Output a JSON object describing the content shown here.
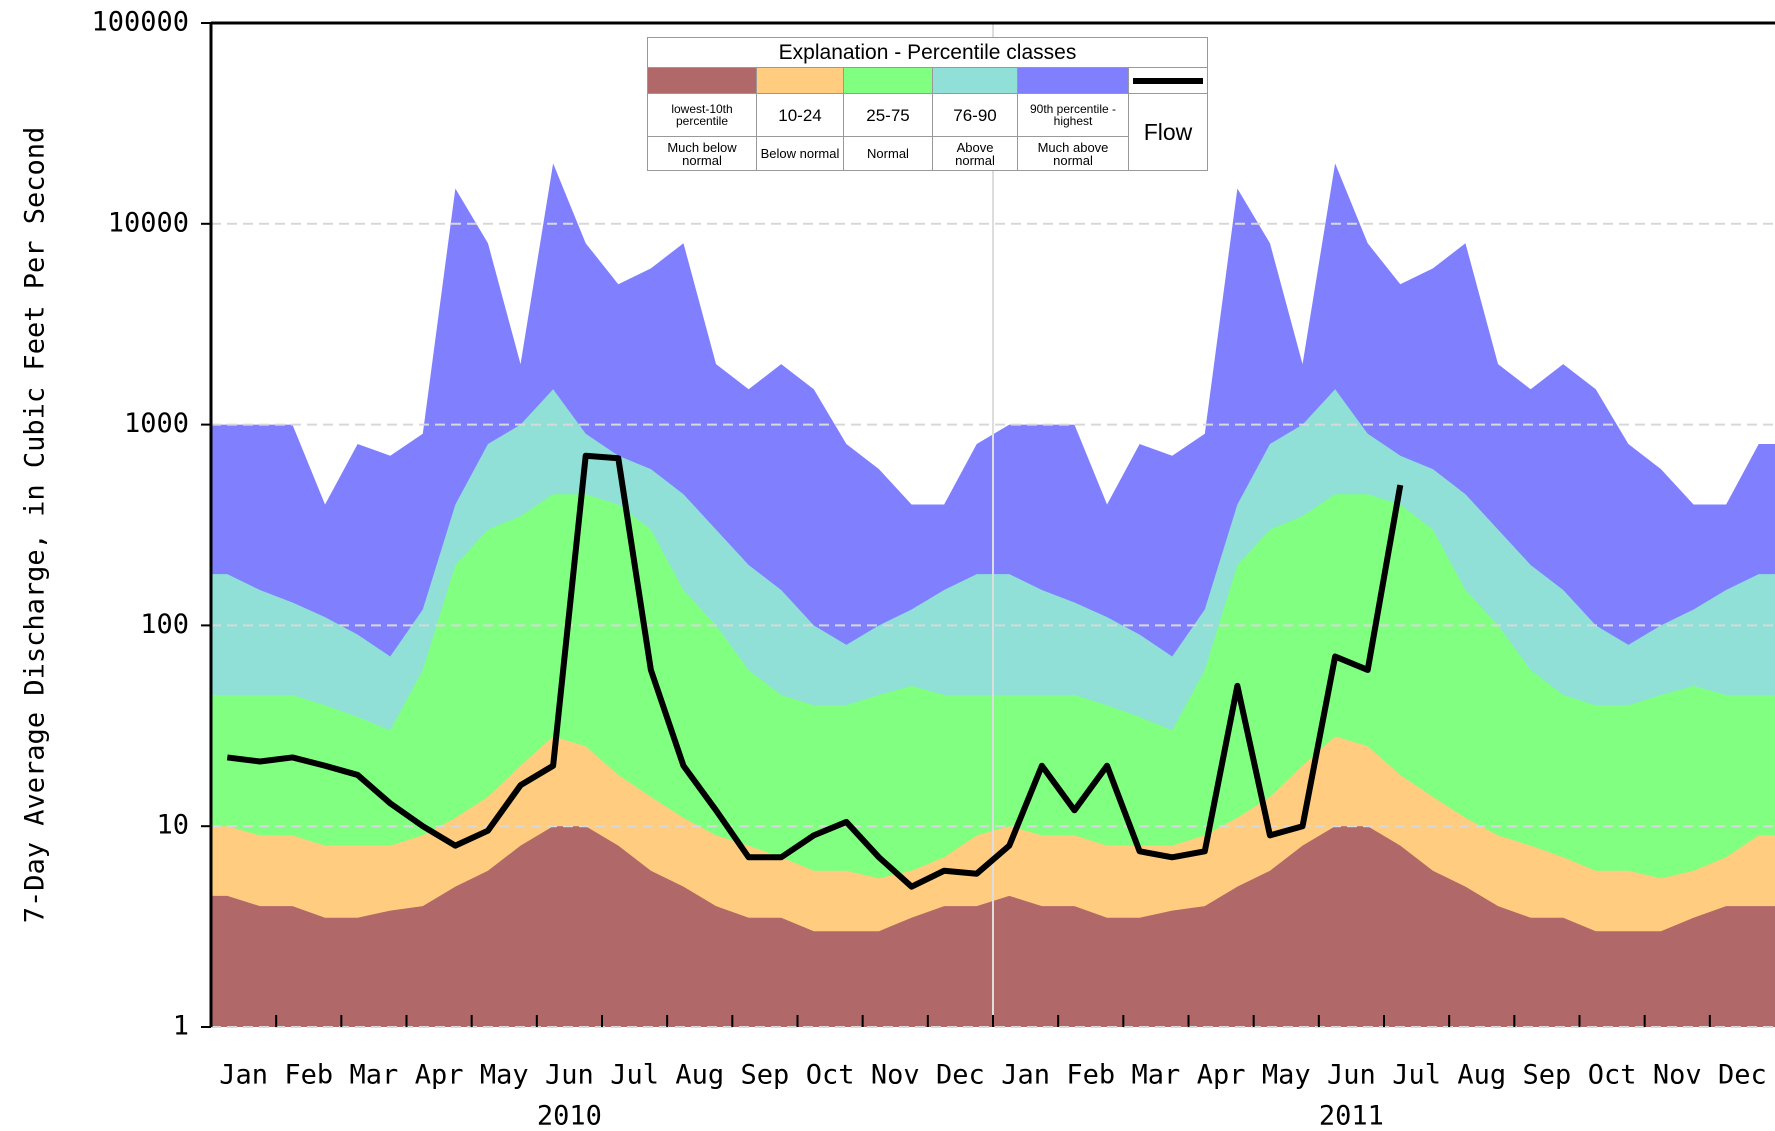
{
  "chart_data": {
    "type": "area",
    "y_label": "7-Day Average Discharge, in Cubic Feet Per Second",
    "legend_title": "Explanation - Percentile classes",
    "legend_descriptions": [
      "Much below normal",
      "Below normal",
      "Normal",
      "Above normal",
      "Much above normal"
    ],
    "categories": [
      "Jan",
      null,
      "Feb",
      null,
      "Mar",
      null,
      "Apr",
      null,
      "May",
      null,
      "Jun",
      null,
      "Jul",
      null,
      "Aug",
      null,
      "Sep",
      null,
      "Oct",
      null,
      "Nov",
      null,
      "Dec",
      null,
      "Jan",
      null,
      "Feb",
      null,
      "Mar",
      null,
      "Apr",
      null,
      "May",
      null,
      "Jun",
      null,
      "Jul",
      null,
      "Aug",
      null,
      "Sep",
      null,
      "Oct",
      null,
      "Nov",
      null,
      "Dec",
      null
    ],
    "x_group_labels": [
      "2010",
      "2011"
    ],
    "log_scale": true,
    "grid": true,
    "ylim": [
      1,
      100000
    ],
    "yticks": [
      1,
      10,
      100,
      1000,
      10000,
      100000
    ],
    "series": [
      {
        "name": "lowest-10th percentile",
        "color": "#b06868",
        "values": [
          4.5,
          4,
          4,
          3.5,
          3.5,
          3.8,
          4,
          5,
          6,
          8,
          10,
          10,
          8,
          6,
          5,
          4,
          3.5,
          3.5,
          3,
          3,
          3,
          3.5,
          4,
          4,
          4.5,
          4,
          4,
          3.5,
          3.5,
          3.8,
          4,
          5,
          6,
          8,
          10,
          10,
          8,
          6,
          5,
          4,
          3.5,
          3.5,
          3,
          3,
          3,
          3.5,
          4,
          4
        ]
      },
      {
        "name": "10-24",
        "color": "#ffcc80",
        "values": [
          10,
          9,
          9,
          8,
          8,
          8,
          9,
          11,
          14,
          20,
          28,
          25,
          18,
          14,
          11,
          9,
          8,
          7,
          6,
          6,
          5.5,
          6,
          7,
          9,
          10,
          9,
          9,
          8,
          8,
          8,
          9,
          11,
          14,
          20,
          28,
          25,
          18,
          14,
          11,
          9,
          8,
          7,
          6,
          6,
          5.5,
          6,
          7,
          9
        ]
      },
      {
        "name": "25-75",
        "color": "#80ff80",
        "values": [
          45,
          45,
          45,
          40,
          35,
          30,
          60,
          200,
          300,
          350,
          450,
          450,
          400,
          300,
          150,
          100,
          60,
          45,
          40,
          40,
          45,
          50,
          45,
          45,
          45,
          45,
          45,
          40,
          35,
          30,
          60,
          200,
          300,
          350,
          450,
          450,
          400,
          300,
          150,
          100,
          60,
          45,
          40,
          40,
          45,
          50,
          45,
          45
        ]
      },
      {
        "name": "76-90",
        "color": "#90e0d8",
        "values": [
          180,
          150,
          130,
          110,
          90,
          70,
          120,
          400,
          800,
          1000,
          1500,
          900,
          700,
          600,
          450,
          300,
          200,
          150,
          100,
          80,
          100,
          120,
          150,
          180,
          180,
          150,
          130,
          110,
          90,
          70,
          120,
          400,
          800,
          1000,
          1500,
          900,
          700,
          600,
          450,
          300,
          200,
          150,
          100,
          80,
          100,
          120,
          150,
          180
        ]
      },
      {
        "name": "90th percentile -highest",
        "color": "#8080ff",
        "values": [
          1000,
          1000,
          1000,
          400,
          800,
          700,
          900,
          15000,
          8000,
          2000,
          20000,
          8000,
          5000,
          6000,
          8000,
          2000,
          1500,
          2000,
          1500,
          800,
          600,
          400,
          400,
          800,
          1000,
          1000,
          1000,
          400,
          800,
          700,
          900,
          15000,
          8000,
          2000,
          20000,
          8000,
          5000,
          6000,
          8000,
          2000,
          1500,
          2000,
          1500,
          800,
          600,
          400,
          400,
          800
        ]
      },
      {
        "name": "Flow",
        "color": "#000000",
        "kind": "line",
        "values": [
          22,
          21,
          22,
          20,
          18,
          13,
          10,
          8,
          9.5,
          16,
          20,
          700,
          680,
          60,
          20,
          12,
          7,
          7,
          9,
          10.5,
          7,
          5,
          6,
          5.8,
          8,
          20,
          12,
          20,
          7.5,
          7,
          7.5,
          50,
          9,
          10,
          70,
          60,
          500,
          null,
          null,
          null,
          null,
          null,
          null,
          null,
          null,
          null,
          null,
          null
        ]
      }
    ]
  }
}
